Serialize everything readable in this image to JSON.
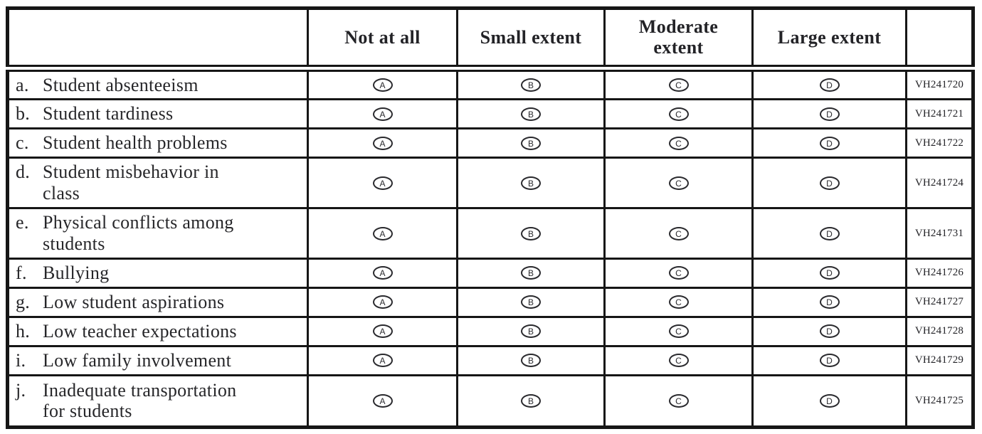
{
  "table": {
    "columns": [
      "Not at all",
      "Small extent",
      "Moderate\nextent",
      "Large extent"
    ],
    "options": [
      "A",
      "B",
      "C",
      "D"
    ],
    "rows": [
      {
        "letter": "a.",
        "label": "Student absenteeism",
        "code": "VH241720"
      },
      {
        "letter": "b.",
        "label": "Student tardiness",
        "code": "VH241721"
      },
      {
        "letter": "c.",
        "label": "Student health problems",
        "code": "VH241722"
      },
      {
        "letter": "d.",
        "label": "Student misbehavior in\nclass",
        "code": "VH241724"
      },
      {
        "letter": "e.",
        "label": "Physical conflicts among\nstudents",
        "code": "VH241731"
      },
      {
        "letter": "f.",
        "label": "Bullying",
        "code": "VH241726"
      },
      {
        "letter": "g.",
        "label": "Low student aspirations",
        "code": "VH241727"
      },
      {
        "letter": "h.",
        "label": "Low teacher expectations",
        "code": "VH241728"
      },
      {
        "letter": "i.",
        "label": "Low family involvement",
        "code": "VH241729"
      },
      {
        "letter": "j.",
        "label": "Inadequate transportation\nfor students",
        "code": "VH241725"
      }
    ]
  }
}
